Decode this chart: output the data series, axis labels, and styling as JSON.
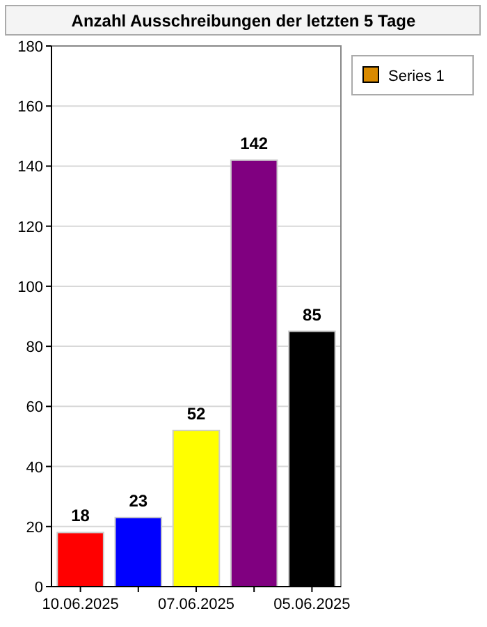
{
  "chart_data": {
    "type": "bar",
    "title": "Anzahl Ausschreibungen der letzten 5 Tage",
    "categories": [
      "10.06.2025",
      null,
      "07.06.2025",
      null,
      "05.06.2025"
    ],
    "series": [
      {
        "name": "Series 1",
        "color": "#d98a00",
        "colors": [
          "#ff0000",
          "#0000ff",
          "#ffff00",
          "#800080",
          "#000000"
        ],
        "values": [
          18,
          23,
          52,
          142,
          85
        ]
      }
    ],
    "ylim": [
      0,
      180
    ],
    "yticks": [
      0,
      20,
      40,
      60,
      80,
      100,
      120,
      140,
      160,
      180
    ],
    "grid": "y",
    "legend": "top right",
    "data_labels": true
  }
}
